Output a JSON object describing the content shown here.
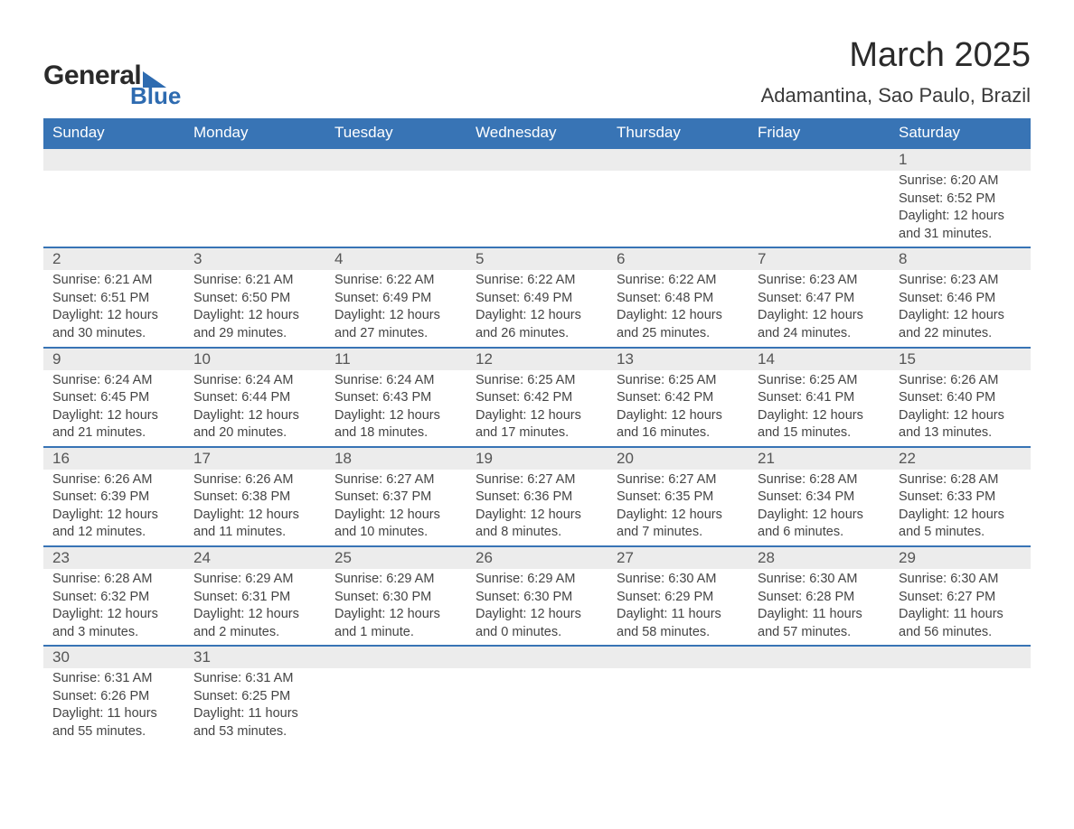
{
  "brand": {
    "word1": "General",
    "word2": "Blue",
    "accent_color": "#2e6bb0"
  },
  "title": "March 2025",
  "location": "Adamantina, Sao Paulo, Brazil",
  "header_bg": "#3874b5",
  "daynum_bg": "#ececec",
  "row_divider": "#3874b5",
  "columns": [
    "Sunday",
    "Monday",
    "Tuesday",
    "Wednesday",
    "Thursday",
    "Friday",
    "Saturday"
  ],
  "weeks": [
    [
      null,
      null,
      null,
      null,
      null,
      null,
      {
        "n": "1",
        "sunrise": "6:20 AM",
        "sunset": "6:52 PM",
        "dl": "12 hours and 31 minutes."
      }
    ],
    [
      {
        "n": "2",
        "sunrise": "6:21 AM",
        "sunset": "6:51 PM",
        "dl": "12 hours and 30 minutes."
      },
      {
        "n": "3",
        "sunrise": "6:21 AM",
        "sunset": "6:50 PM",
        "dl": "12 hours and 29 minutes."
      },
      {
        "n": "4",
        "sunrise": "6:22 AM",
        "sunset": "6:49 PM",
        "dl": "12 hours and 27 minutes."
      },
      {
        "n": "5",
        "sunrise": "6:22 AM",
        "sunset": "6:49 PM",
        "dl": "12 hours and 26 minutes."
      },
      {
        "n": "6",
        "sunrise": "6:22 AM",
        "sunset": "6:48 PM",
        "dl": "12 hours and 25 minutes."
      },
      {
        "n": "7",
        "sunrise": "6:23 AM",
        "sunset": "6:47 PM",
        "dl": "12 hours and 24 minutes."
      },
      {
        "n": "8",
        "sunrise": "6:23 AM",
        "sunset": "6:46 PM",
        "dl": "12 hours and 22 minutes."
      }
    ],
    [
      {
        "n": "9",
        "sunrise": "6:24 AM",
        "sunset": "6:45 PM",
        "dl": "12 hours and 21 minutes."
      },
      {
        "n": "10",
        "sunrise": "6:24 AM",
        "sunset": "6:44 PM",
        "dl": "12 hours and 20 minutes."
      },
      {
        "n": "11",
        "sunrise": "6:24 AM",
        "sunset": "6:43 PM",
        "dl": "12 hours and 18 minutes."
      },
      {
        "n": "12",
        "sunrise": "6:25 AM",
        "sunset": "6:42 PM",
        "dl": "12 hours and 17 minutes."
      },
      {
        "n": "13",
        "sunrise": "6:25 AM",
        "sunset": "6:42 PM",
        "dl": "12 hours and 16 minutes."
      },
      {
        "n": "14",
        "sunrise": "6:25 AM",
        "sunset": "6:41 PM",
        "dl": "12 hours and 15 minutes."
      },
      {
        "n": "15",
        "sunrise": "6:26 AM",
        "sunset": "6:40 PM",
        "dl": "12 hours and 13 minutes."
      }
    ],
    [
      {
        "n": "16",
        "sunrise": "6:26 AM",
        "sunset": "6:39 PM",
        "dl": "12 hours and 12 minutes."
      },
      {
        "n": "17",
        "sunrise": "6:26 AM",
        "sunset": "6:38 PM",
        "dl": "12 hours and 11 minutes."
      },
      {
        "n": "18",
        "sunrise": "6:27 AM",
        "sunset": "6:37 PM",
        "dl": "12 hours and 10 minutes."
      },
      {
        "n": "19",
        "sunrise": "6:27 AM",
        "sunset": "6:36 PM",
        "dl": "12 hours and 8 minutes."
      },
      {
        "n": "20",
        "sunrise": "6:27 AM",
        "sunset": "6:35 PM",
        "dl": "12 hours and 7 minutes."
      },
      {
        "n": "21",
        "sunrise": "6:28 AM",
        "sunset": "6:34 PM",
        "dl": "12 hours and 6 minutes."
      },
      {
        "n": "22",
        "sunrise": "6:28 AM",
        "sunset": "6:33 PM",
        "dl": "12 hours and 5 minutes."
      }
    ],
    [
      {
        "n": "23",
        "sunrise": "6:28 AM",
        "sunset": "6:32 PM",
        "dl": "12 hours and 3 minutes."
      },
      {
        "n": "24",
        "sunrise": "6:29 AM",
        "sunset": "6:31 PM",
        "dl": "12 hours and 2 minutes."
      },
      {
        "n": "25",
        "sunrise": "6:29 AM",
        "sunset": "6:30 PM",
        "dl": "12 hours and 1 minute."
      },
      {
        "n": "26",
        "sunrise": "6:29 AM",
        "sunset": "6:30 PM",
        "dl": "12 hours and 0 minutes."
      },
      {
        "n": "27",
        "sunrise": "6:30 AM",
        "sunset": "6:29 PM",
        "dl": "11 hours and 58 minutes."
      },
      {
        "n": "28",
        "sunrise": "6:30 AM",
        "sunset": "6:28 PM",
        "dl": "11 hours and 57 minutes."
      },
      {
        "n": "29",
        "sunrise": "6:30 AM",
        "sunset": "6:27 PM",
        "dl": "11 hours and 56 minutes."
      }
    ],
    [
      {
        "n": "30",
        "sunrise": "6:31 AM",
        "sunset": "6:26 PM",
        "dl": "11 hours and 55 minutes."
      },
      {
        "n": "31",
        "sunrise": "6:31 AM",
        "sunset": "6:25 PM",
        "dl": "11 hours and 53 minutes."
      },
      null,
      null,
      null,
      null,
      null
    ]
  ],
  "labels": {
    "sunrise": "Sunrise: ",
    "sunset": "Sunset: ",
    "daylight": "Daylight: "
  }
}
